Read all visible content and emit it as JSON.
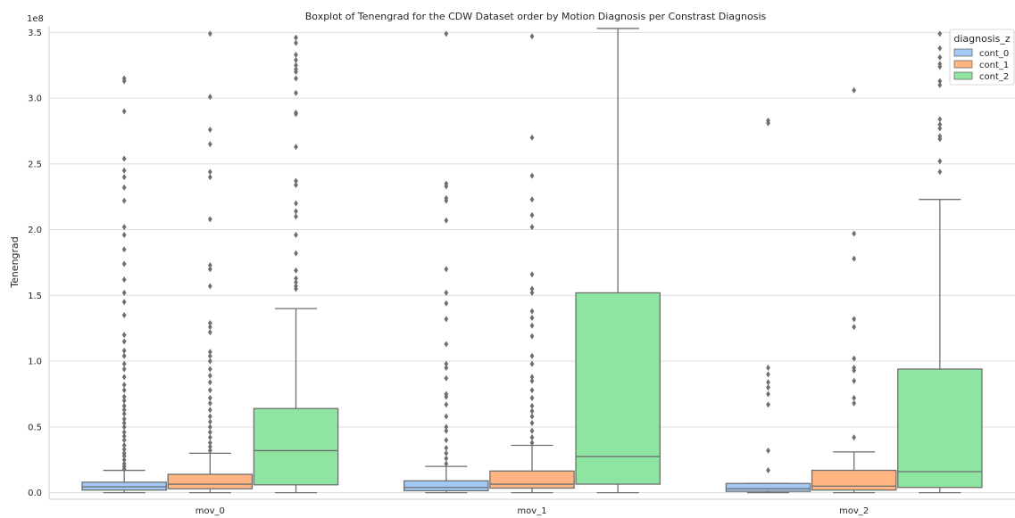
{
  "chart_data": {
    "type": "box",
    "title": "Boxplot of Tenengrad for the CDW Dataset order by Motion Diagnosis per Constrast Diagnosis",
    "xlabel": "",
    "ylabel": "Tenengrad",
    "offset_label": "1e8",
    "ylim": [
      -0.05,
      3.55
    ],
    "yticks": [
      "0.0",
      "0.5",
      "1.0",
      "1.5",
      "2.0",
      "2.5",
      "3.0",
      "3.5"
    ],
    "ytick_values": [
      0,
      0.5,
      1.0,
      1.5,
      2.0,
      2.5,
      3.0,
      3.5
    ],
    "grid": true,
    "categories": [
      "mov_0",
      "mov_1",
      "mov_2"
    ],
    "legend": {
      "title": "diagnosis_z",
      "placement": "top-right"
    },
    "series": [
      {
        "name": "cont_0",
        "color": "#a1c9f4",
        "boxes": [
          {
            "whisker_low": 0.0,
            "q1": 0.02,
            "median": 0.045,
            "q3": 0.08,
            "whisker_high": 0.17,
            "outliers": [
              0.18,
              0.2,
              0.22,
              0.25,
              0.28,
              0.3,
              0.33,
              0.36,
              0.4,
              0.43,
              0.46,
              0.5,
              0.53,
              0.56,
              0.6,
              0.63,
              0.66,
              0.7,
              0.73,
              0.78,
              0.82,
              0.88,
              0.94,
              0.98,
              1.04,
              1.08,
              1.15,
              1.2,
              1.35,
              1.45,
              1.52,
              1.62,
              1.74,
              1.85,
              1.96,
              2.02,
              2.22,
              2.32,
              2.4,
              2.45,
              2.54,
              2.9,
              3.13,
              3.15
            ]
          },
          {
            "whisker_low": 0.0,
            "q1": 0.015,
            "median": 0.04,
            "q3": 0.09,
            "whisker_high": 0.2,
            "outliers": [
              0.22,
              0.26,
              0.3,
              0.34,
              0.4,
              0.47,
              0.5,
              0.58,
              0.67,
              0.73,
              0.75,
              0.87,
              0.95,
              0.98,
              1.13,
              1.32,
              1.44,
              1.52,
              1.7,
              2.07,
              2.22,
              2.24,
              2.33,
              2.35,
              3.49
            ]
          },
          {
            "whisker_low": 0.0,
            "q1": 0.01,
            "median": 0.03,
            "q3": 0.07,
            "whisker_high": 0.07,
            "outliers": [
              0.17,
              0.32,
              0.67,
              0.75,
              0.8,
              0.84,
              0.9,
              0.95,
              2.81,
              2.83
            ]
          }
        ]
      },
      {
        "name": "cont_1",
        "color": "#ffb482",
        "boxes": [
          {
            "whisker_low": 0.0,
            "q1": 0.03,
            "median": 0.065,
            "q3": 0.14,
            "whisker_high": 0.3,
            "outliers": [
              0.32,
              0.35,
              0.38,
              0.42,
              0.46,
              0.5,
              0.54,
              0.58,
              0.63,
              0.68,
              0.72,
              0.78,
              0.84,
              0.89,
              0.94,
              1.0,
              1.04,
              1.07,
              1.22,
              1.26,
              1.29,
              1.57,
              1.7,
              1.73,
              2.08,
              2.4,
              2.44,
              2.65,
              2.76,
              3.01,
              3.49
            ]
          },
          {
            "whisker_low": 0.0,
            "q1": 0.035,
            "median": 0.065,
            "q3": 0.165,
            "whisker_high": 0.36,
            "outliers": [
              0.38,
              0.42,
              0.47,
              0.53,
              0.58,
              0.62,
              0.66,
              0.72,
              0.78,
              0.85,
              0.88,
              0.98,
              1.04,
              1.19,
              1.27,
              1.33,
              1.38,
              1.52,
              1.55,
              1.66,
              2.02,
              2.11,
              2.23,
              2.41,
              2.7,
              3.47
            ]
          },
          {
            "whisker_low": 0.0,
            "q1": 0.02,
            "median": 0.05,
            "q3": 0.17,
            "whisker_high": 0.31,
            "outliers": [
              0.42,
              0.68,
              0.72,
              0.85,
              0.93,
              0.95,
              1.02,
              1.26,
              1.32,
              1.78,
              1.97,
              3.06
            ]
          }
        ]
      },
      {
        "name": "cont_2",
        "color": "#8de5a1",
        "boxes": [
          {
            "whisker_low": 0.0,
            "q1": 0.06,
            "median": 0.32,
            "q3": 0.64,
            "whisker_high": 1.4,
            "outliers": [
              1.55,
              1.57,
              1.6,
              1.63,
              1.69,
              1.82,
              1.96,
              2.1,
              2.14,
              2.2,
              2.34,
              2.37,
              2.63,
              2.88,
              2.89,
              3.04,
              3.15,
              3.2,
              3.22,
              3.25,
              3.29,
              3.33,
              3.42,
              3.46
            ]
          },
          {
            "whisker_low": 0.0,
            "q1": 0.065,
            "median": 0.275,
            "q3": 1.52,
            "whisker_high": 3.53,
            "outliers": []
          },
          {
            "whisker_low": 0.0,
            "q1": 0.04,
            "median": 0.16,
            "q3": 0.94,
            "whisker_high": 2.23,
            "outliers": [
              2.44,
              2.52,
              2.69,
              2.71,
              2.77,
              2.8,
              2.84,
              3.1,
              3.13,
              3.24,
              3.26,
              3.31,
              3.38,
              3.49
            ]
          }
        ]
      }
    ]
  }
}
